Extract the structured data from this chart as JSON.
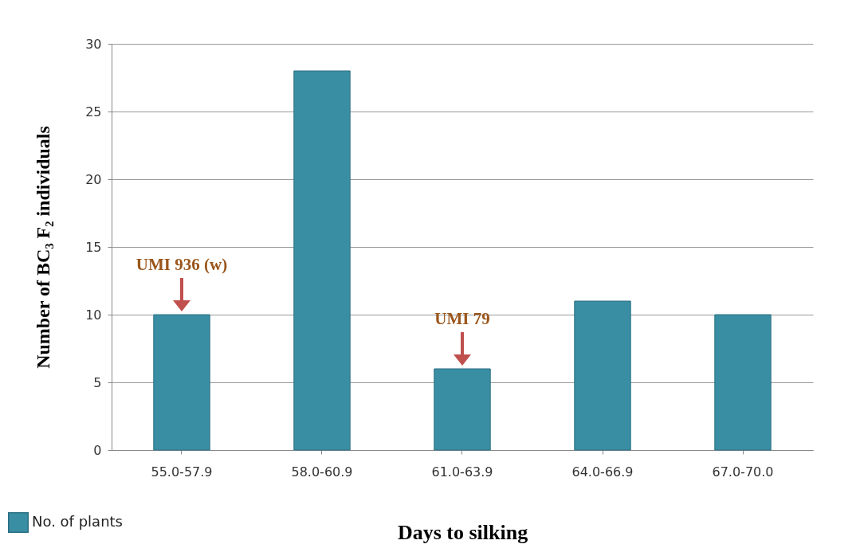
{
  "chart_data": {
    "type": "bar",
    "xlabel": "Days to silking",
    "ylabel": "Number of BC₃ F₂ individuals",
    "categories": [
      "55.0-57.9",
      "58.0-60.9",
      "61.0-63.9",
      "64.0-66.9",
      "67.0-70.0"
    ],
    "series": [
      {
        "name": "No. of plants",
        "color": "#3a8ea4",
        "values": [
          10,
          28,
          6,
          11,
          10
        ]
      }
    ],
    "ylim": [
      0,
      30
    ],
    "yticks": [
      0,
      5,
      10,
      15,
      20,
      25,
      30
    ],
    "grid": "y",
    "legend": "bottom left",
    "annotations": [
      {
        "text": "UMI 936 (w)",
        "x": "55.0-57.9",
        "y": 10
      },
      {
        "text": "UMI 79",
        "x": "61.0-63.9",
        "y": 6
      }
    ]
  }
}
